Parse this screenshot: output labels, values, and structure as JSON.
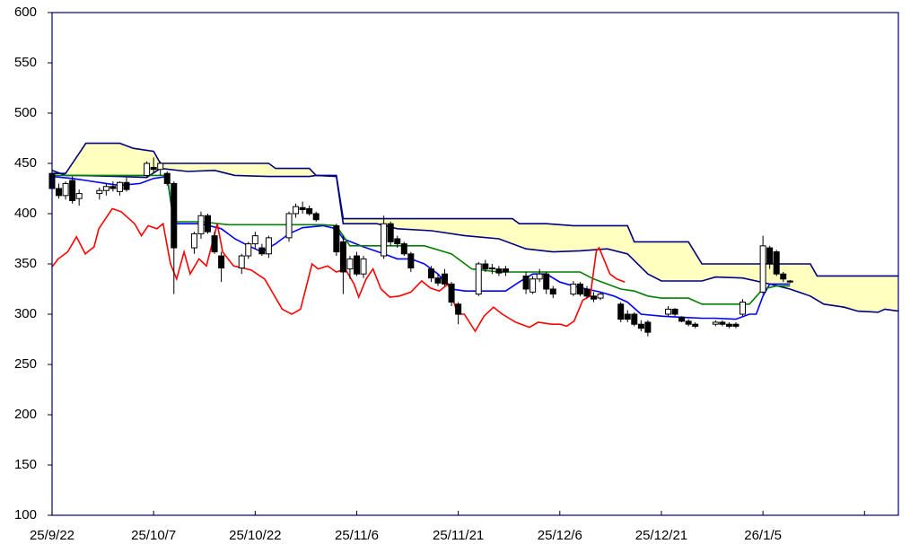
{
  "chart_data": {
    "type": "candlestick",
    "xlim": [
      0,
      125
    ],
    "xticks": [
      {
        "value": 0,
        "label": "25/9/22"
      },
      {
        "value": 15,
        "label": "25/10/7"
      },
      {
        "value": 30,
        "label": "25/10/22"
      },
      {
        "value": 45,
        "label": "25/11/6"
      },
      {
        "value": 60,
        "label": "25/11/21"
      },
      {
        "value": 75,
        "label": "25/12/6"
      },
      {
        "value": 90,
        "label": "25/12/21"
      },
      {
        "value": 105,
        "label": "26/1/5"
      },
      {
        "value": 120,
        "label": null
      }
    ],
    "ylim": [
      100,
      600
    ],
    "yticks": [
      100,
      150,
      200,
      250,
      300,
      350,
      400,
      450,
      500,
      550,
      600
    ],
    "candles": {
      "up_color": "#ffffff",
      "down_color": "#000000",
      "x": [
        0,
        1,
        2,
        3,
        4,
        7,
        8,
        9,
        10,
        11,
        14,
        15,
        16,
        17,
        18,
        21,
        22,
        23,
        24,
        25,
        28,
        29,
        30,
        31,
        32,
        35,
        36,
        37,
        38,
        39,
        42,
        43,
        44,
        45,
        46,
        49,
        50,
        51,
        52,
        53,
        56,
        57,
        58,
        59,
        60,
        63,
        64,
        65,
        66,
        67,
        70,
        71,
        72,
        73,
        74,
        77,
        78,
        79,
        80,
        81,
        84,
        85,
        86,
        87,
        88,
        91,
        92,
        93,
        94,
        95,
        98,
        99,
        100,
        101,
        102,
        105,
        106,
        107,
        108,
        109
      ],
      "open": [
        440,
        425,
        418,
        433,
        415,
        420,
        423,
        427,
        422,
        431,
        438,
        446,
        444,
        440,
        430,
        366,
        380,
        398,
        378,
        358,
        346,
        358,
        370,
        366,
        360,
        376,
        400,
        406,
        405,
        400,
        388,
        372,
        345,
        358,
        340,
        358,
        390,
        375,
        370,
        360,
        345,
        336,
        340,
        330,
        310,
        320,
        350,
        346,
        345,
        345,
        338,
        322,
        335,
        340,
        325,
        320,
        330,
        325,
        318,
        316,
        310,
        300,
        300,
        290,
        292,
        300,
        305,
        297,
        293,
        290,
        290,
        292,
        290,
        290,
        300,
        322,
        366,
        362,
        340,
        333
      ],
      "high": [
        442,
        430,
        432,
        437,
        424,
        426,
        430,
        432,
        432,
        436,
        452,
        456,
        452,
        442,
        432,
        382,
        402,
        400,
        382,
        362,
        360,
        372,
        382,
        370,
        378,
        402,
        410,
        412,
        408,
        402,
        390,
        378,
        358,
        362,
        358,
        398,
        392,
        378,
        372,
        362,
        348,
        340,
        345,
        332,
        312,
        352,
        354,
        350,
        348,
        348,
        342,
        338,
        345,
        342,
        328,
        333,
        332,
        328,
        322,
        322,
        312,
        304,
        302,
        294,
        294,
        308,
        306,
        298,
        295,
        292,
        294,
        294,
        292,
        292,
        315,
        378,
        368,
        364,
        342,
        334
      ],
      "low": [
        418,
        415,
        414,
        410,
        408,
        414,
        418,
        422,
        418,
        422,
        436,
        440,
        438,
        428,
        320,
        360,
        375,
        380,
        360,
        332,
        340,
        355,
        365,
        358,
        356,
        372,
        396,
        400,
        398,
        392,
        358,
        320,
        335,
        338,
        336,
        355,
        368,
        366,
        358,
        342,
        332,
        328,
        328,
        308,
        290,
        318,
        342,
        340,
        338,
        338,
        320,
        320,
        332,
        320,
        316,
        318,
        318,
        316,
        312,
        314,
        292,
        292,
        288,
        283,
        278,
        298,
        298,
        292,
        288,
        286,
        288,
        288,
        286,
        286,
        298,
        320,
        345,
        338,
        332,
        331
      ],
      "close": [
        425,
        418,
        430,
        413,
        420,
        423,
        427,
        425,
        431,
        424,
        450,
        444,
        450,
        430,
        366,
        380,
        398,
        382,
        362,
        346,
        358,
        370,
        378,
        360,
        376,
        400,
        407,
        404,
        400,
        394,
        362,
        342,
        355,
        340,
        355,
        390,
        372,
        370,
        360,
        346,
        336,
        331,
        330,
        312,
        300,
        350,
        345,
        345,
        341,
        342,
        325,
        335,
        340,
        325,
        320,
        330,
        320,
        318,
        315,
        320,
        295,
        295,
        290,
        286,
        282,
        305,
        300,
        293,
        290,
        288,
        292,
        290,
        288,
        288,
        312,
        368,
        350,
        340,
        335,
        332
      ]
    },
    "cloud": {
      "color": "#ffffc0",
      "lines": [
        {
          "color": "#000080",
          "x": [
            0,
            2,
            4,
            5,
            10,
            12,
            15,
            16,
            32,
            33,
            38,
            39,
            42,
            43,
            68,
            69,
            73,
            77,
            85,
            86,
            94,
            96,
            112,
            113,
            125
          ],
          "values": [
            440,
            440,
            460,
            470,
            470,
            465,
            462,
            450,
            450,
            445,
            445,
            438,
            438,
            395,
            395,
            390,
            390,
            388,
            388,
            372,
            372,
            350,
            350,
            338,
            338
          ]
        },
        {
          "color": "#000080",
          "x": [
            0,
            2,
            4,
            10,
            14,
            16,
            20,
            24,
            27,
            32,
            38,
            39,
            42,
            43,
            48,
            51,
            56,
            61,
            66,
            70,
            74,
            78,
            82,
            85,
            88,
            90,
            96,
            98,
            102,
            106,
            109,
            112,
            114,
            117,
            119,
            122,
            123,
            125
          ],
          "values": [
            443,
            438,
            438,
            437,
            436,
            445,
            442,
            443,
            438,
            437,
            437,
            438,
            437,
            390,
            390,
            385,
            383,
            378,
            375,
            365,
            362,
            363,
            365,
            360,
            340,
            333,
            333,
            337,
            336,
            330,
            325,
            318,
            310,
            307,
            303,
            302,
            305,
            303
          ]
        }
      ]
    },
    "series": [
      {
        "color": "#0000ff",
        "x": [
          0,
          3,
          5,
          8,
          10,
          13,
          15,
          17,
          18,
          22,
          25,
          27,
          29,
          31,
          33,
          35,
          37,
          40,
          42,
          43,
          46,
          49,
          51,
          53,
          55,
          57,
          59,
          61,
          65,
          67,
          69,
          71,
          73,
          75,
          77,
          79,
          81,
          83,
          85,
          87,
          90,
          93,
          96,
          98,
          101,
          103,
          104,
          105,
          106,
          108,
          109
        ],
        "values": [
          437,
          435,
          433,
          430,
          428,
          430,
          435,
          437,
          390,
          390,
          385,
          375,
          368,
          362,
          370,
          380,
          386,
          388,
          385,
          375,
          367,
          360,
          355,
          355,
          350,
          340,
          325,
          323,
          323,
          323,
          332,
          340,
          340,
          332,
          328,
          325,
          322,
          318,
          312,
          300,
          298,
          297,
          296,
          296,
          295,
          300,
          300,
          318,
          330,
          330,
          330
        ]
      },
      {
        "color": "#008000",
        "x": [
          0,
          10,
          17,
          18,
          22,
          26,
          40,
          42,
          44,
          48,
          55,
          59,
          62,
          66,
          72,
          78,
          80,
          84,
          86,
          88,
          90,
          94,
          96,
          100,
          103,
          105,
          107,
          109
        ],
        "values": [
          438,
          438,
          438,
          392,
          392,
          389,
          389,
          388,
          368,
          368,
          368,
          360,
          345,
          342,
          342,
          342,
          335,
          325,
          323,
          318,
          316,
          316,
          310,
          310,
          310,
          325,
          328,
          328
        ]
      },
      {
        "color": "#ff0000",
        "x": [
          0,
          0.9,
          2.3,
          3.6,
          4.9,
          6.2,
          6.9,
          8.9,
          10.2,
          12.2,
          13.2,
          14.2,
          15.5,
          16.4,
          17.5,
          18.4,
          19.5,
          20.4,
          21.7,
          22.8,
          24.4,
          25.2,
          26.8,
          29.4,
          31.4,
          32.7,
          34,
          35.4,
          36.7,
          38.4,
          39.3,
          40.7,
          42,
          43.3,
          44.6,
          45.3,
          46.4,
          47.4,
          48.6,
          49.9,
          51.3,
          53,
          54.6,
          55.9,
          57.2,
          58.5,
          59.9,
          60.9,
          62.5,
          63.8,
          65.2,
          66.5,
          68.5,
          70.5,
          71.8,
          73.8,
          75.1,
          76,
          77.1,
          78.4,
          79.5,
          80.4,
          80.8,
          82.4,
          83.4,
          84.6
        ],
        "values": [
          347,
          355,
          362,
          377,
          360,
          367,
          385,
          405,
          402,
          390,
          378,
          388,
          385,
          390,
          350,
          335,
          362,
          340,
          355,
          348,
          390,
          362,
          348,
          344,
          335,
          320,
          305,
          300,
          305,
          350,
          345,
          348,
          342,
          345,
          330,
          317,
          335,
          345,
          325,
          317,
          318,
          322,
          333,
          326,
          323,
          330,
          300,
          300,
          283,
          298,
          307,
          300,
          292,
          287,
          292,
          290,
          290,
          288,
          293,
          314,
          318,
          363,
          366,
          340,
          335,
          332
        ]
      }
    ]
  }
}
